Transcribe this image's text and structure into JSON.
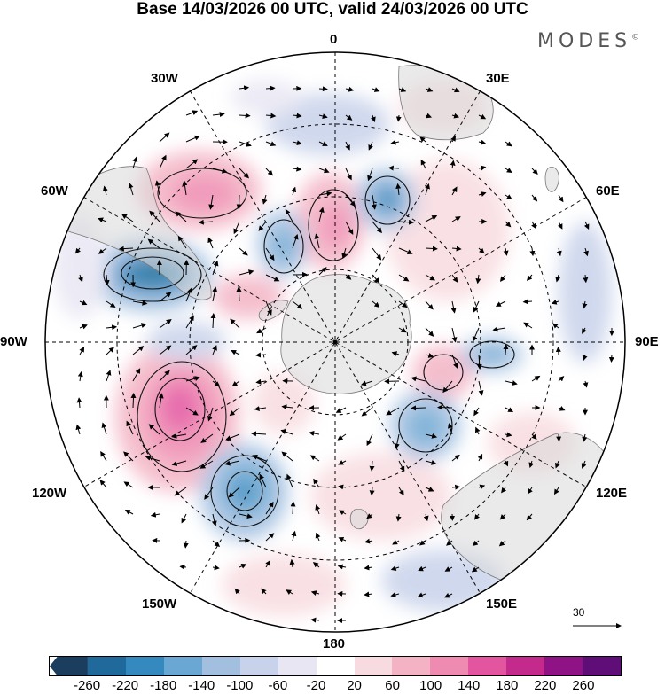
{
  "title": "Base 14/03/2026 00 UTC, valid 24/03/2026 00 UTC",
  "brand": "MODES",
  "brand_mark": "©",
  "meridian_labels": {
    "m0": "0",
    "m30e": "30E",
    "m60e": "60E",
    "m90e": "90E",
    "m120e": "120E",
    "m150e": "150E",
    "m180": "180",
    "m150w": "150W",
    "m120w": "120W",
    "m90w": "90W",
    "m60w": "60W",
    "m30w": "30W"
  },
  "reference_vector": "30",
  "colorbar": {
    "colors": [
      "#1b3d5e",
      "#1f6a9a",
      "#3489bf",
      "#6aa7d2",
      "#a3bfe0",
      "#c8d2ea",
      "#e8e6f3",
      "#ffffff",
      "#f8dbe0",
      "#f3b3c4",
      "#ef8ab0",
      "#e455a0",
      "#c42a8b",
      "#8f1384",
      "#5f0e78"
    ],
    "ticks": [
      "-260",
      "-220",
      "-180",
      "-140",
      "-100",
      "-60",
      "-20",
      "20",
      "60",
      "100",
      "140",
      "180",
      "220",
      "260"
    ]
  },
  "anomaly_centers": [
    {
      "name": "blue-center-atlantic-southwest",
      "value": -220
    },
    {
      "name": "blue-center-pacific-southeast",
      "value": -200
    },
    {
      "name": "pink-center-pacific-east",
      "value": 200
    },
    {
      "name": "pink-center-atlantic-south",
      "value": 160
    },
    {
      "name": "blue-center-indian-west",
      "value": -180
    },
    {
      "name": "blue-center-indian-east",
      "value": -120
    },
    {
      "name": "blue-center-australia-south",
      "value": -160
    },
    {
      "name": "pink-center-south-atlantic-mid",
      "value": 120
    }
  ]
}
